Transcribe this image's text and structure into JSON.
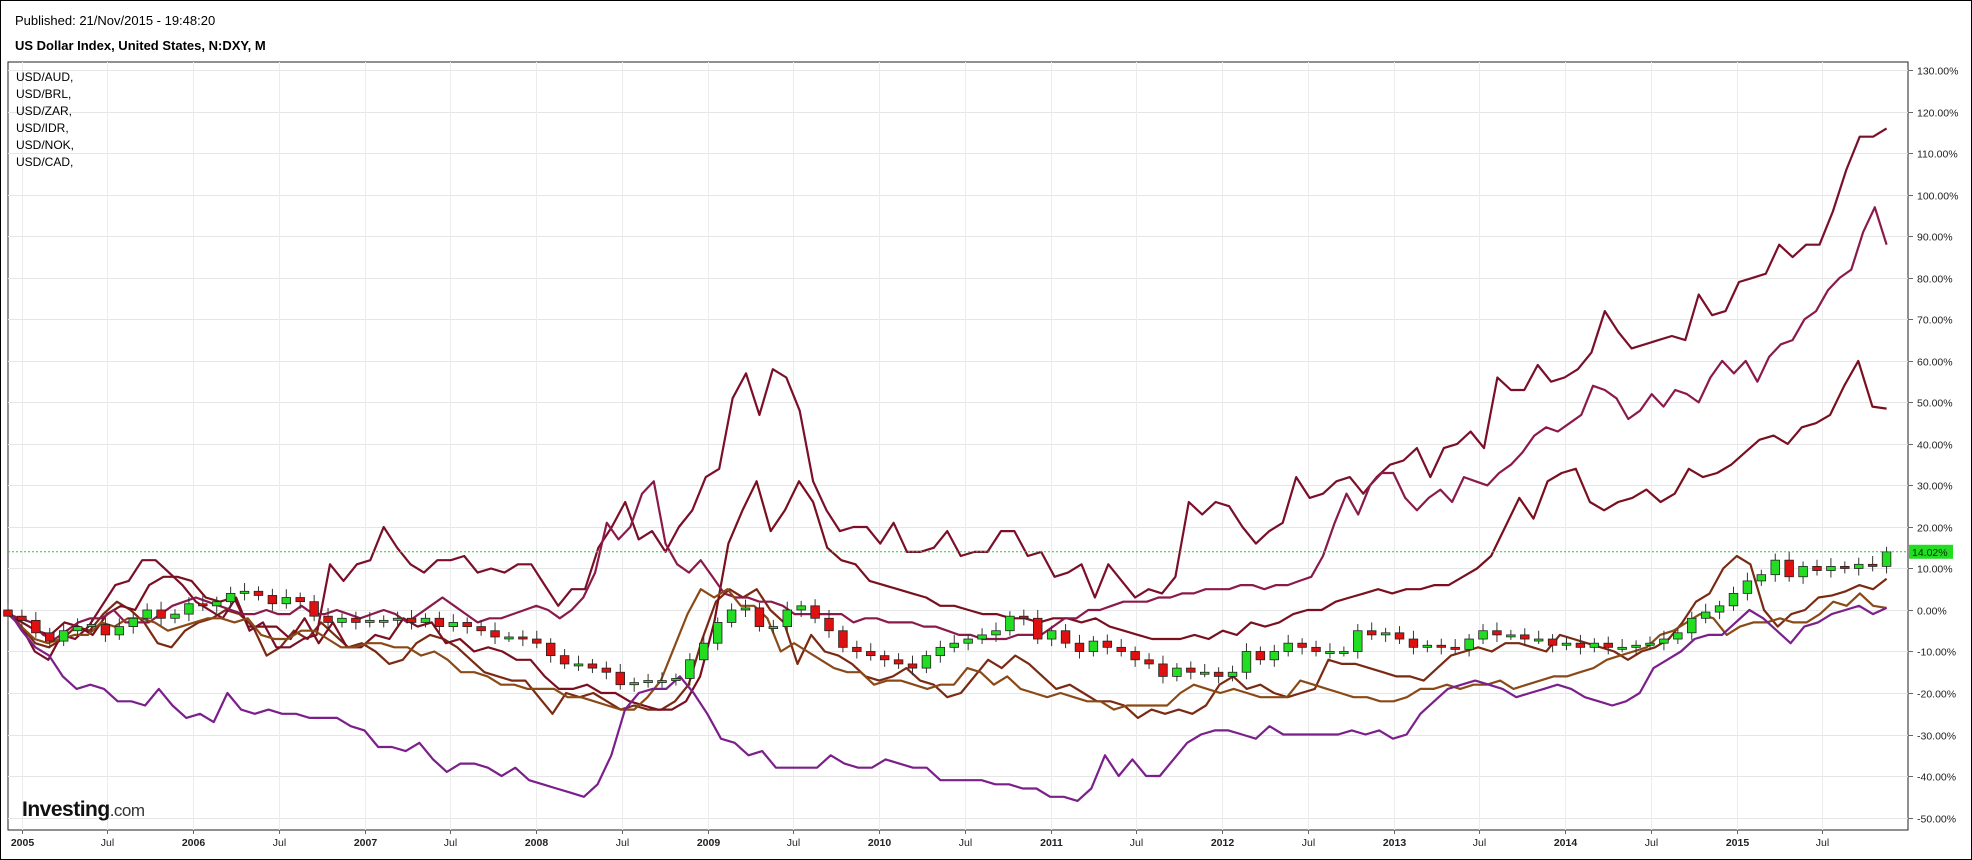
{
  "header": {
    "published": "Published: 21/Nov/2015 - 19:48:20",
    "title": "US Dollar Index, United States, N:DXY, M"
  },
  "logo": {
    "brand": "Investing",
    "suffix": ".com"
  },
  "chart_data": {
    "type": "candlestick+line",
    "title": "US Dollar Index, United States, N:DXY, M",
    "x_labels": [
      "2005",
      "Jul",
      "2006",
      "Jul",
      "2007",
      "Jul",
      "2008",
      "Jul",
      "2009",
      "Jul",
      "2010",
      "Jul",
      "2011",
      "Jul",
      "2012",
      "Jul",
      "2013",
      "Jul",
      "2014",
      "Jul",
      "2015",
      "Jul"
    ],
    "y_labels": [
      "130.00%",
      "120.00%",
      "110.00%",
      "100.00%",
      "90.00%",
      "80.00%",
      "70.00%",
      "60.00%",
      "50.00%",
      "40.00%",
      "30.00%",
      "20.00%",
      "10.00%",
      "0.00%",
      "-10.00%",
      "-20.00%",
      "-30.00%",
      "-40.00%",
      "-50.00%"
    ],
    "ylim": [
      -53,
      132
    ],
    "grid": true,
    "legend": [
      "USD/AUD,",
      "USD/BRL,",
      "USD/ZAR,",
      "USD/IDR,",
      "USD/NOK,",
      "USD/CAD,"
    ],
    "last_value_label": "14.02%",
    "last_value": 14.02,
    "colors": {
      "up": "#22dd22",
      "down": "#e01010",
      "ref_line": "#22cc22",
      "USD/AUD,": "#7a2a12",
      "USD/BRL,": "#7b0f2a",
      "USD/ZAR,": "#7a0f1e",
      "USD/IDR,": "#8b1a4a",
      "USD/NOK,": "#8a4a18",
      "USD/CAD,": "#7b1f8a"
    },
    "x_start": 2004.92,
    "x_end": 2016.0,
    "dxy_closes": [
      -1.5,
      -2.5,
      -5.5,
      -7.5,
      -5,
      -4,
      -3.5,
      -6,
      -4,
      -2,
      0,
      -2,
      -1,
      1.5,
      1,
      2,
      4,
      4.5,
      3.5,
      1.5,
      3,
      2,
      -1.5,
      -3,
      -2,
      -3,
      -2.5,
      -2.5,
      -2,
      -3,
      -2,
      -4,
      -3,
      -4,
      -5,
      -6.5,
      -6.5,
      -7,
      -8,
      -11,
      -13,
      -13,
      -14,
      -15,
      -18,
      -17.5,
      -17,
      -17,
      -16.5,
      -12,
      -8,
      -3,
      0,
      0.5,
      -4,
      -4,
      0,
      1,
      -2,
      -5,
      -9,
      -10,
      -11,
      -12,
      -13,
      -14,
      -11,
      -9,
      -8,
      -7,
      -6,
      -5,
      -1.5,
      -2,
      -7,
      -5,
      -8,
      -10,
      -7.5,
      -9,
      -10,
      -12,
      -13,
      -16,
      -14,
      -15,
      -15,
      -16,
      -15,
      -10,
      -12,
      -10,
      -8,
      -9,
      -10,
      -10,
      -10,
      -5,
      -6,
      -5.5,
      -7,
      -9,
      -8.5,
      -9,
      -9.5,
      -7,
      -5,
      -6,
      -6,
      -7,
      -7,
      -8.5,
      -8,
      -9,
      -8,
      -9,
      -9,
      -8.5,
      -8,
      -7,
      -5.5,
      -2,
      -0.5,
      1,
      4,
      7,
      8.5,
      12,
      8,
      10.5,
      9.5,
      10.5,
      10,
      11,
      10.5,
      14
    ],
    "series": [
      {
        "name": "USD/AUD,",
        "values": [
          -1,
          -4,
          -8,
          -9,
          -7,
          -4,
          -5,
          -1,
          2,
          0,
          -3,
          -8,
          -9,
          -5,
          -3,
          -2,
          0,
          -1,
          -4,
          -11,
          -9,
          -5,
          -7,
          -3,
          -6,
          -9,
          -8,
          -10,
          -13,
          -12,
          -8,
          -6,
          -7,
          -9,
          -12,
          -15,
          -16,
          -17,
          -17,
          -21,
          -25,
          -20,
          -21,
          -20,
          -22,
          -24,
          -23,
          -24,
          -24,
          -22,
          -18,
          -7,
          2,
          5,
          3,
          5,
          0,
          -3,
          -13,
          -6,
          -10,
          -11,
          -13,
          -16,
          -17,
          -16,
          -14,
          -17,
          -18,
          -21,
          -20,
          -16,
          -12,
          -14,
          -11,
          -13,
          -16,
          -19,
          -18,
          -20,
          -22,
          -22,
          -23,
          -26,
          -24,
          -25,
          -24,
          -25,
          -23,
          -18,
          -16,
          -19,
          -18,
          -20,
          -21,
          -20,
          -19,
          -12,
          -13,
          -13,
          -14,
          -15,
          -16,
          -16,
          -17,
          -14,
          -11,
          -10,
          -9,
          -10,
          -8,
          -8,
          -9,
          -10,
          -6,
          -7,
          -8,
          -9,
          -10,
          -12,
          -10,
          -9,
          -7,
          -3,
          2,
          4,
          10,
          13,
          11,
          0,
          -4,
          -1,
          0,
          3,
          3.5,
          4.5,
          6,
          5,
          7.5
        ]
      },
      {
        "name": "USD/BRL,",
        "values": [
          0,
          -4,
          -10,
          -12,
          -6,
          -7,
          -4,
          1,
          6,
          7,
          12,
          12,
          9,
          6,
          2,
          0,
          -2,
          3,
          -5,
          -3,
          -9,
          -9,
          -7,
          -6,
          11,
          7,
          11,
          12,
          20,
          15,
          11,
          9,
          12,
          12,
          13,
          9,
          10,
          9,
          11,
          11,
          6,
          1,
          5,
          5,
          15,
          20,
          26,
          17,
          19,
          14,
          20,
          24,
          32,
          34,
          51,
          57,
          47,
          58,
          56,
          48,
          31,
          24,
          19,
          20,
          20,
          16,
          21,
          14,
          14,
          15,
          19,
          13,
          14,
          14,
          19,
          19,
          13,
          14,
          8,
          9,
          11,
          3,
          11,
          7,
          3,
          5,
          4,
          8,
          26,
          23,
          26,
          25,
          20,
          16,
          19,
          21,
          32,
          27,
          28,
          31,
          32,
          28,
          32,
          35,
          36,
          39,
          32,
          39,
          40,
          43,
          39,
          56,
          53,
          53,
          59,
          55,
          56,
          58,
          62,
          72,
          67,
          63,
          64,
          65,
          66,
          65,
          76,
          71,
          72,
          79,
          80,
          81,
          88,
          85,
          88,
          88,
          96,
          106,
          114,
          114,
          116
        ]
      },
      {
        "name": "USD/ZAR,",
        "values": [
          -1,
          -3,
          -5,
          -6,
          -3,
          -4,
          -6,
          -1,
          1,
          0,
          6,
          8,
          8,
          7,
          3,
          2,
          3,
          -4,
          -4,
          -4,
          -7,
          -2,
          -8,
          -3,
          -9,
          -9,
          -6,
          -7,
          -2,
          -4,
          -3,
          -8,
          -7,
          -10,
          -9,
          -10,
          -12,
          -12,
          -16,
          -19,
          -19,
          -18,
          -20,
          -20,
          -22,
          -23,
          -24,
          -24,
          -22,
          -16,
          -3,
          16,
          24,
          31,
          19,
          24,
          31,
          26,
          15,
          12,
          11,
          7,
          6,
          5,
          4,
          3,
          1,
          1,
          0,
          -1,
          -1,
          -2,
          -2,
          -3,
          -2,
          -2,
          -3,
          -2,
          -4,
          -5,
          -6,
          -7,
          -7,
          -7,
          -6,
          -7,
          -5,
          -6,
          -3,
          -4,
          -3,
          -1,
          0,
          0,
          2,
          3,
          4,
          5,
          4,
          5,
          5,
          6,
          6,
          8,
          10,
          13,
          20,
          27,
          22,
          31,
          33,
          34,
          26,
          24,
          26,
          27,
          29,
          26,
          28,
          34,
          32,
          33,
          35,
          38,
          41,
          42,
          40,
          44,
          45,
          47,
          54,
          60,
          49,
          48.5
        ]
      },
      {
        "name": "USD/IDR,",
        "values": [
          -1,
          -2,
          -3,
          -6,
          -7,
          -5,
          -3,
          -2,
          -2,
          0,
          -3,
          -3,
          -3,
          -1,
          1,
          2,
          3,
          2,
          1,
          0,
          -1,
          -1,
          0,
          -1,
          -1,
          1,
          -1,
          -1,
          0,
          -1,
          -2,
          -1,
          0,
          -1,
          -3,
          -1,
          1,
          3,
          1,
          -1,
          -3,
          -2,
          -2,
          -1,
          0,
          1,
          0,
          -2,
          0,
          3,
          9,
          21,
          17,
          20,
          28,
          31,
          16,
          11,
          9,
          12,
          8,
          4,
          3,
          3,
          2,
          2,
          1,
          -1,
          -1,
          -1,
          -1,
          -1,
          -3,
          -2,
          -2,
          -3,
          -3,
          -3,
          -4,
          -4,
          -5,
          -6,
          -6,
          -7,
          -7,
          -7,
          -6,
          -6,
          -6,
          -4,
          -2,
          -2,
          0,
          0,
          1,
          2,
          2,
          2,
          3,
          3,
          4,
          4,
          5,
          5,
          5,
          6,
          6,
          5,
          6,
          6,
          7,
          8,
          13,
          21,
          28,
          23,
          30,
          33,
          33,
          27,
          24,
          27,
          29,
          26,
          32,
          31,
          30,
          33,
          35,
          38,
          42,
          44,
          43,
          45,
          47,
          54,
          53,
          51,
          46,
          48,
          52,
          49,
          53,
          52,
          50,
          56,
          60,
          57,
          60,
          55,
          61,
          64,
          65,
          70,
          72,
          77,
          80,
          82,
          91,
          97,
          88
        ]
      },
      {
        "name": "USD/NOK,",
        "values": [
          -1,
          -4,
          -7,
          -8,
          -7,
          -6,
          -6,
          -3,
          -4,
          -2,
          -2,
          -3,
          -5,
          -4,
          -3,
          -2,
          -2,
          -3,
          -2,
          -6,
          -7,
          -7,
          -5,
          -5,
          -7,
          -9,
          -9,
          -8,
          -8,
          -9,
          -9,
          -11,
          -10,
          -12,
          -15,
          -15,
          -16,
          -18,
          -18,
          -19,
          -19,
          -19,
          -21,
          -21,
          -22,
          -23,
          -24,
          -24,
          -21,
          -17,
          -9,
          -1,
          5,
          3,
          5,
          1,
          1,
          -2,
          -10,
          -8,
          -10,
          -12,
          -14,
          -15,
          -15,
          -18,
          -17,
          -17,
          -18,
          -19,
          -18,
          -18,
          -14,
          -15,
          -18,
          -16,
          -19,
          -20,
          -21,
          -20,
          -21,
          -22,
          -22,
          -24,
          -23,
          -23,
          -23,
          -23,
          -20,
          -18,
          -19,
          -20,
          -19,
          -20,
          -21,
          -21,
          -21,
          -17,
          -18,
          -19,
          -20,
          -21,
          -21,
          -22,
          -22,
          -21,
          -19,
          -19,
          -18,
          -19,
          -18,
          -18,
          -17,
          -19,
          -18,
          -17,
          -16,
          -16,
          -15,
          -14,
          -12,
          -11,
          -10,
          -9,
          -6,
          -5,
          -3,
          -1,
          -2,
          -6,
          -4,
          -3,
          -3,
          -2,
          -3,
          -3,
          -1,
          2,
          1,
          4,
          1,
          0.5
        ]
      },
      {
        "name": "USD/CAD,",
        "values": [
          0,
          -5,
          -9,
          -11,
          -16,
          -19,
          -18,
          -19,
          -22,
          -22,
          -23,
          -19,
          -23,
          -26,
          -25,
          -27,
          -20,
          -24,
          -25,
          -24,
          -25,
          -25,
          -26,
          -26,
          -26,
          -28,
          -29,
          -33,
          -33,
          -34,
          -32,
          -36,
          -39,
          -37,
          -37,
          -38,
          -40,
          -38,
          -41,
          -42,
          -43,
          -44,
          -45,
          -42,
          -35,
          -24,
          -20,
          -19,
          -19,
          -16,
          -20,
          -25,
          -31,
          -32,
          -35,
          -34,
          -38,
          -38,
          -38,
          -38,
          -35,
          -37,
          -38,
          -38,
          -36,
          -37,
          -38,
          -38,
          -41,
          -41,
          -41,
          -41,
          -42,
          -42,
          -43,
          -43,
          -45,
          -45,
          -46,
          -43,
          -35,
          -40,
          -36,
          -40,
          -40,
          -36,
          -32,
          -30,
          -29,
          -29,
          -30,
          -31,
          -28,
          -30,
          -30,
          -30,
          -30,
          -30,
          -29,
          -30,
          -29,
          -31,
          -30,
          -25,
          -22,
          -19,
          -18,
          -17,
          -18,
          -19,
          -21,
          -20,
          -19,
          -18,
          -19,
          -21,
          -22,
          -23,
          -22,
          -20,
          -14,
          -12,
          -10,
          -7,
          -6,
          -6,
          -3,
          0,
          -2,
          -5,
          -8,
          -4,
          -3,
          -1,
          0,
          1,
          -1,
          0.5
        ]
      }
    ]
  }
}
